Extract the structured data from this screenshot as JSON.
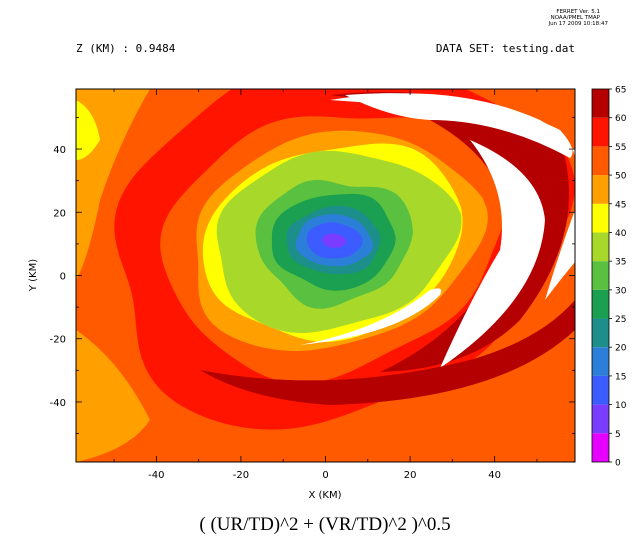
{
  "header": {
    "ferret_version": "FERRET Ver. 5.1",
    "ferret_org": "NOAA/PMEL TMAP",
    "ferret_date": "Jun 17 2009 10:18:47",
    "z_label": "Z (KM) : 0.9484",
    "dataset_label": "DATA SET: testing.dat"
  },
  "footer": {
    "expression": "( (UR/TD)^2 + (VR/TD)^2 )^0.5"
  },
  "chart_data": {
    "type": "heatmap",
    "title": "( (UR/TD)^2 + (VR/TD)^2 )^0.5",
    "xlabel": "X (KM)",
    "ylabel": "Y (KM)",
    "xlim": [
      -59,
      59
    ],
    "ylim": [
      -59,
      59
    ],
    "x_ticks": [
      -40,
      -20,
      0,
      20,
      40
    ],
    "y_ticks": [
      -40,
      -20,
      0,
      20,
      40
    ],
    "colorbar": {
      "levels": [
        0,
        5,
        10,
        15,
        20,
        25,
        30,
        35,
        40,
        45,
        50,
        55,
        60,
        65
      ],
      "colors": [
        "#e600ff",
        "#7a3cff",
        "#3c5cff",
        "#2b7fd8",
        "#1c8f8a",
        "#1aa050",
        "#5ac040",
        "#a8d82a",
        "#ffff00",
        "#ffa000",
        "#ff5a00",
        "#ff1400",
        "#b40000"
      ]
    },
    "eye_center": [
      2,
      11
    ],
    "eye_min_value": 5
  }
}
